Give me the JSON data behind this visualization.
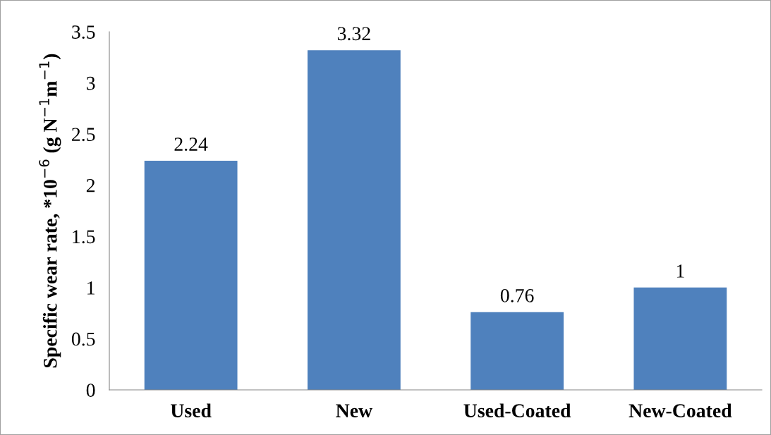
{
  "chart_data": {
    "type": "bar",
    "ylabel": "Specific wear rate, *10$^{−6}$ (g N$^{−1}$m$^{−1}$)",
    "categories": [
      "Used",
      "New",
      "Used-Coated",
      "New-Coated"
    ],
    "values": [
      2.24,
      3.32,
      0.76,
      1
    ],
    "color": "#4f81bd",
    "ylim": [
      0,
      3.5
    ],
    "yticks": [
      0,
      0.5,
      1,
      1.5,
      2,
      2.5,
      3,
      3.5
    ],
    "data_labels": true,
    "grid": false,
    "legend": false
  }
}
